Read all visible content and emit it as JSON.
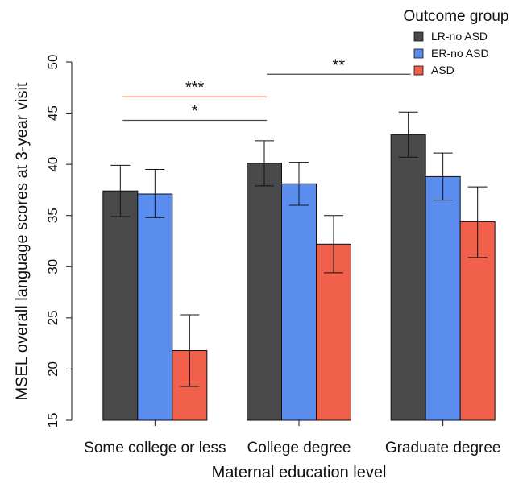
{
  "chart_data": {
    "type": "bar",
    "xlabel": "Maternal education level",
    "ylabel": "MSEL overall language scores at 3-year visit",
    "ylim": [
      15,
      50
    ],
    "yticks": [
      15,
      20,
      25,
      30,
      35,
      40,
      45,
      50
    ],
    "categories": [
      "Some college or less",
      "College degree",
      "Graduate degree"
    ],
    "legend": {
      "title": "Outcome group",
      "placement": "top-right"
    },
    "series": [
      {
        "name": "LR-no ASD",
        "color": "#4a4a4a",
        "values": [
          37.4,
          40.1,
          42.9
        ],
        "err_low": [
          34.9,
          37.9,
          40.7
        ],
        "err_high": [
          39.9,
          42.3,
          45.1
        ]
      },
      {
        "name": "ER-no ASD",
        "color": "#5b8def",
        "values": [
          37.1,
          38.1,
          38.8
        ],
        "err_low": [
          34.8,
          36.0,
          36.5
        ],
        "err_high": [
          39.5,
          40.2,
          41.1
        ]
      },
      {
        "name": "ASD",
        "color": "#f0604a",
        "values": [
          21.8,
          32.2,
          34.4
        ],
        "err_low": [
          18.3,
          29.4,
          30.9
        ],
        "err_high": [
          25.3,
          35.0,
          37.8
        ]
      }
    ],
    "significance": [
      {
        "label": "*",
        "color": "#4a4a4a",
        "from_group": 0,
        "to_group": 1,
        "y": 44.3
      },
      {
        "label": "***",
        "color": "#f0604a",
        "from_group": 0,
        "to_group": 1,
        "y": 46.6
      },
      {
        "label": "**",
        "color": "#4a4a4a",
        "from_group": 1,
        "to_group": 2,
        "y": 48.8
      }
    ]
  }
}
